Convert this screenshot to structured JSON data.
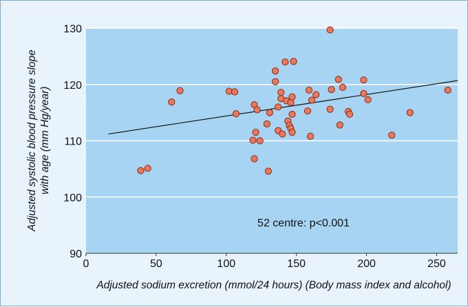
{
  "chart_data": {
    "type": "scatter",
    "title": "",
    "xlabel": "Adjusted sodium excretion (mmol/24 hours) (Body mass index and alcohol)",
    "ylabel_line1": "Adjusted systolic blood pressure slope",
    "ylabel_line2": "with age (mm Hg/year)",
    "xlim": [
      0,
      265
    ],
    "ylim": [
      90,
      130
    ],
    "x_ticks": [
      0,
      50,
      100,
      150,
      200,
      250
    ],
    "y_ticks": [
      90,
      100,
      110,
      120,
      130
    ],
    "grid": "horizontal",
    "annotation": "52 centre: p<0.001",
    "regression_line": {
      "x": [
        16,
        265
      ],
      "y": [
        111.2,
        120.7
      ]
    },
    "colors": {
      "plot_background": "#a8d4f3",
      "figure_background": "#e9f3fb",
      "marker_fill": "#e8785e",
      "marker_edge": "#8a2a14",
      "gridline": "#ffffff"
    },
    "points": [
      {
        "x": 39,
        "y": 104.7
      },
      {
        "x": 44,
        "y": 105.1
      },
      {
        "x": 61,
        "y": 116.9
      },
      {
        "x": 67,
        "y": 118.9
      },
      {
        "x": 102,
        "y": 118.8
      },
      {
        "x": 106,
        "y": 118.7
      },
      {
        "x": 107,
        "y": 114.8
      },
      {
        "x": 119,
        "y": 110.1
      },
      {
        "x": 120,
        "y": 116.4
      },
      {
        "x": 120,
        "y": 106.8
      },
      {
        "x": 121,
        "y": 111.5
      },
      {
        "x": 122,
        "y": 115.5
      },
      {
        "x": 124,
        "y": 110.0
      },
      {
        "x": 129,
        "y": 113.0
      },
      {
        "x": 130,
        "y": 104.6
      },
      {
        "x": 131,
        "y": 115.0
      },
      {
        "x": 135,
        "y": 122.4
      },
      {
        "x": 135,
        "y": 120.5
      },
      {
        "x": 137,
        "y": 116.0
      },
      {
        "x": 137,
        "y": 111.8
      },
      {
        "x": 139,
        "y": 117.5
      },
      {
        "x": 139,
        "y": 118.6
      },
      {
        "x": 140,
        "y": 111.2
      },
      {
        "x": 142,
        "y": 124.0
      },
      {
        "x": 143,
        "y": 117.1
      },
      {
        "x": 144,
        "y": 113.5
      },
      {
        "x": 145,
        "y": 112.7
      },
      {
        "x": 146,
        "y": 116.8
      },
      {
        "x": 146,
        "y": 112.2
      },
      {
        "x": 147,
        "y": 111.5
      },
      {
        "x": 147,
        "y": 117.8
      },
      {
        "x": 147,
        "y": 114.7
      },
      {
        "x": 148,
        "y": 124.1
      },
      {
        "x": 158,
        "y": 115.3
      },
      {
        "x": 159,
        "y": 119.0
      },
      {
        "x": 160,
        "y": 110.8
      },
      {
        "x": 161,
        "y": 117.2
      },
      {
        "x": 164,
        "y": 118.2
      },
      {
        "x": 174,
        "y": 129.7
      },
      {
        "x": 174,
        "y": 115.6
      },
      {
        "x": 175,
        "y": 119.1
      },
      {
        "x": 180,
        "y": 120.9
      },
      {
        "x": 181,
        "y": 112.8
      },
      {
        "x": 183,
        "y": 119.5
      },
      {
        "x": 187,
        "y": 115.2
      },
      {
        "x": 188,
        "y": 114.7
      },
      {
        "x": 198,
        "y": 120.8
      },
      {
        "x": 198,
        "y": 118.4
      },
      {
        "x": 201,
        "y": 117.3
      },
      {
        "x": 218,
        "y": 111.0
      },
      {
        "x": 231,
        "y": 115.0
      },
      {
        "x": 258,
        "y": 119.0
      }
    ]
  }
}
